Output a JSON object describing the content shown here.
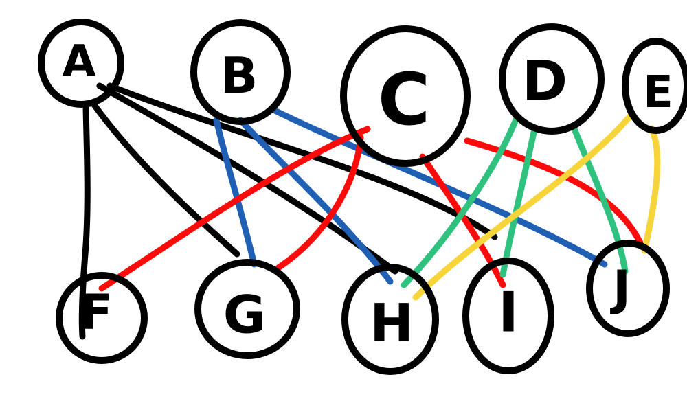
{
  "colors": {
    "ink": "#000000",
    "black": "#000000",
    "blue": "#1f5fb4",
    "red": "#ff0a0a",
    "green": "#2ec27e",
    "yellow": "#f7d43a"
  },
  "nodes": [
    {
      "id": "A",
      "label": "A"
    },
    {
      "id": "B",
      "label": "B"
    },
    {
      "id": "C",
      "label": "C"
    },
    {
      "id": "D",
      "label": "D"
    },
    {
      "id": "E",
      "label": "E"
    },
    {
      "id": "F",
      "label": "F"
    },
    {
      "id": "G",
      "label": "G"
    },
    {
      "id": "H",
      "label": "H"
    },
    {
      "id": "I",
      "label": "I"
    },
    {
      "id": "J",
      "label": "J"
    }
  ],
  "edges": [
    {
      "from": "A",
      "to": "F",
      "color": "black"
    },
    {
      "from": "A",
      "to": "G",
      "color": "black"
    },
    {
      "from": "A",
      "to": "H",
      "color": "black"
    },
    {
      "from": "A",
      "to": "J",
      "color": "black"
    },
    {
      "from": "B",
      "to": "G",
      "color": "blue"
    },
    {
      "from": "B",
      "to": "H",
      "color": "blue"
    },
    {
      "from": "B",
      "to": "J",
      "color": "blue"
    },
    {
      "from": "C",
      "to": "F",
      "color": "red"
    },
    {
      "from": "C",
      "to": "G",
      "color": "red"
    },
    {
      "from": "C",
      "to": "I",
      "color": "red"
    },
    {
      "from": "C",
      "to": "J",
      "color": "red"
    },
    {
      "from": "D",
      "to": "H",
      "color": "green"
    },
    {
      "from": "D",
      "to": "I",
      "color": "green"
    },
    {
      "from": "D",
      "to": "J",
      "color": "green"
    },
    {
      "from": "E",
      "to": "H",
      "color": "yellow"
    },
    {
      "from": "E",
      "to": "J",
      "color": "yellow"
    }
  ]
}
